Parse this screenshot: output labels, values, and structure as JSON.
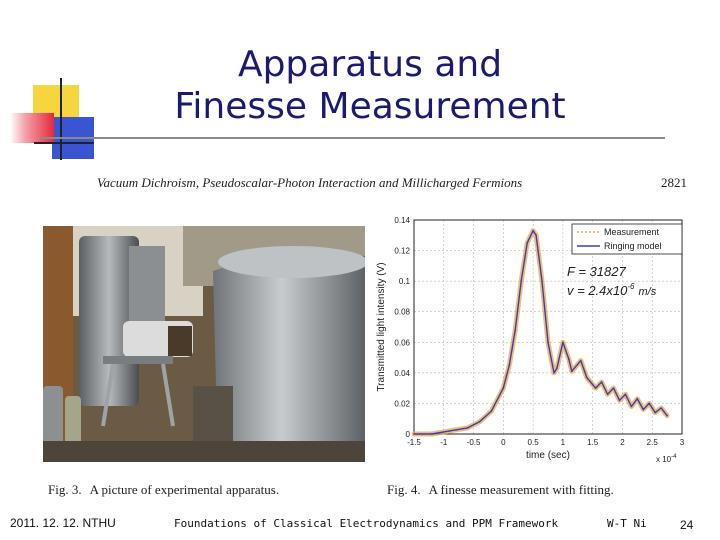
{
  "slide": {
    "title_line1": "Apparatus and",
    "title_line2": "Finesse Measurement",
    "accent_colors": {
      "yellow": "#f6d63e",
      "red": "#e8283c",
      "blue": "#3a55d2",
      "title": "#1a1a73"
    }
  },
  "paper": {
    "header": "Vacuum Dichroism, Pseudoscalar-Photon Interaction and Millicharged Fermions",
    "page_number": "2821"
  },
  "photo": {
    "caption_label": "Fig. 3.",
    "caption_text": "A picture of experimental apparatus."
  },
  "figure": {
    "caption_label": "Fig. 4.",
    "caption_text": "A finesse measurement with fitting."
  },
  "chart_data": {
    "type": "line",
    "xlabel": "time (sec)",
    "x_multiplier": "x 10",
    "x_multiplier_exp": "-4",
    "ylabel": "Transmitted light intensity (V)",
    "xlim": [
      -1.5,
      3
    ],
    "ylim": [
      0,
      0.14
    ],
    "x_ticks": [
      "-1.5",
      "-1",
      "-0.5",
      "0",
      "0.5",
      "1",
      "1.5",
      "2",
      "2.5",
      "3"
    ],
    "y_ticks": [
      "0",
      "0.02",
      "0.04",
      "0.06",
      "0.08",
      "0.1",
      "0.12",
      "0.14"
    ],
    "grid": true,
    "legend_position": "top-right",
    "annotation_F": "F = 31827",
    "annotation_v": "v = 2.4x10",
    "annotation_v_exp": "-6",
    "annotation_v_unit": "m/s",
    "series": [
      {
        "name": "Measurement",
        "color": "#e8a94a",
        "x": [
          -1.5,
          -1.2,
          -0.9,
          -0.6,
          -0.4,
          -0.2,
          0.0,
          0.1,
          0.2,
          0.3,
          0.4,
          0.5,
          0.55,
          0.65,
          0.75,
          0.85,
          0.9,
          1.0,
          1.1,
          1.15,
          1.3,
          1.4,
          1.55,
          1.65,
          1.75,
          1.85,
          1.95,
          2.05,
          2.15,
          2.25,
          2.35,
          2.45,
          2.55,
          2.65,
          2.75
        ],
        "y": [
          0.0,
          0.0,
          0.002,
          0.004,
          0.008,
          0.015,
          0.03,
          0.045,
          0.068,
          0.1,
          0.125,
          0.133,
          0.13,
          0.1,
          0.06,
          0.04,
          0.043,
          0.06,
          0.049,
          0.041,
          0.048,
          0.037,
          0.03,
          0.034,
          0.026,
          0.03,
          0.022,
          0.026,
          0.018,
          0.023,
          0.016,
          0.02,
          0.014,
          0.017,
          0.012
        ]
      },
      {
        "name": "Ringing model",
        "color": "#3b3bbf",
        "x": [
          -1.5,
          -1.2,
          -0.9,
          -0.6,
          -0.4,
          -0.2,
          0.0,
          0.1,
          0.2,
          0.3,
          0.4,
          0.5,
          0.55,
          0.65,
          0.75,
          0.85,
          0.9,
          1.0,
          1.1,
          1.15,
          1.3,
          1.4,
          1.55,
          1.65,
          1.75,
          1.85,
          1.95,
          2.05,
          2.15,
          2.25,
          2.35,
          2.45,
          2.55,
          2.65,
          2.75
        ],
        "y": [
          0.0,
          0.0,
          0.002,
          0.004,
          0.008,
          0.015,
          0.03,
          0.045,
          0.068,
          0.1,
          0.125,
          0.133,
          0.13,
          0.1,
          0.06,
          0.04,
          0.043,
          0.06,
          0.049,
          0.041,
          0.048,
          0.037,
          0.03,
          0.034,
          0.026,
          0.03,
          0.022,
          0.026,
          0.018,
          0.023,
          0.016,
          0.02,
          0.014,
          0.017,
          0.012
        ]
      }
    ]
  },
  "footer": {
    "date": "2011. 12. 12. NTHU",
    "course": "Foundations of Classical Electrodynamics and PPM Framework",
    "author": "W-T Ni",
    "page": "24"
  }
}
